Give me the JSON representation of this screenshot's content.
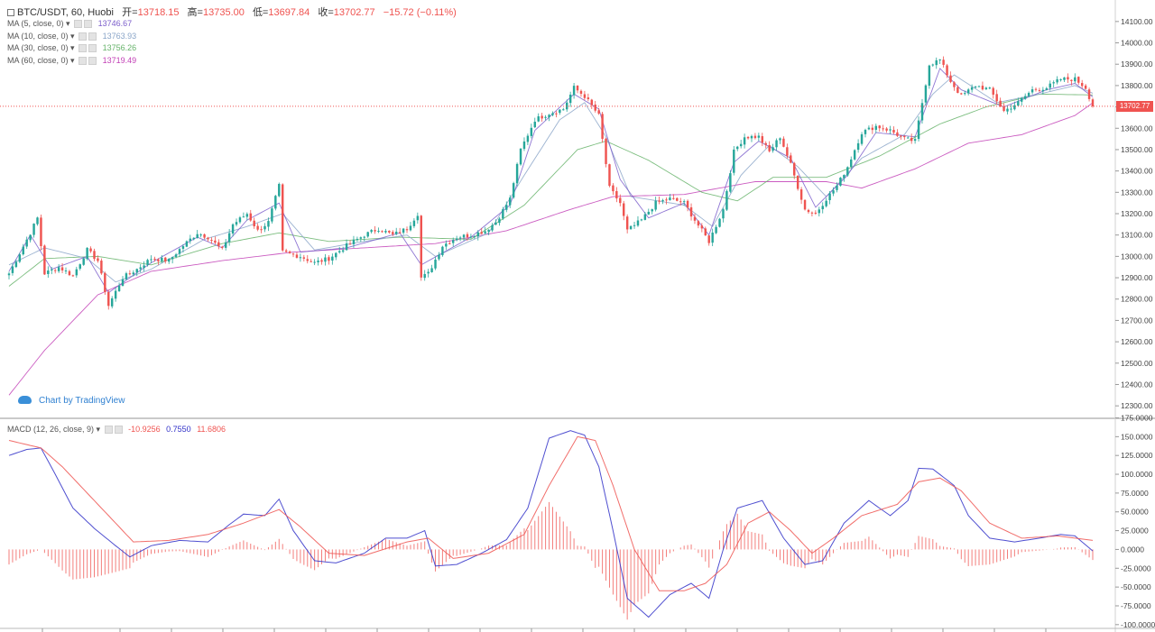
{
  "header": {
    "symbol": "BTC/USDT, 60, Huobi",
    "open_label": "开=",
    "open": "13718.15",
    "high_label": "高=",
    "high": "13735.00",
    "low_label": "低=",
    "low": "13697.84",
    "close_label": "收=",
    "close": "13702.77",
    "change": "−15.72 (−0.11%)"
  },
  "ma_legend": [
    {
      "label": "MA (5, close, 0)",
      "value": "13746.67",
      "color": "#7b5ecb"
    },
    {
      "label": "MA (10, close, 0)",
      "value": "13763.93",
      "color": "#8aa5c8"
    },
    {
      "label": "MA (30, close, 0)",
      "value": "13756.26",
      "color": "#66b36a"
    },
    {
      "label": "MA (60, close, 0)",
      "value": "13719.49",
      "color": "#c23fb6"
    }
  ],
  "macd_legend": {
    "label": "MACD (12, 26, close, 9)",
    "hist": "-10.9256",
    "macd": "0.7550",
    "signal": "11.6806",
    "hist_color": "#ef5350",
    "macd_color": "#3030c8",
    "signal_color": "#ef5350"
  },
  "branding": "Chart by TradingView",
  "last_price_label": "13702.77",
  "chart_data": [
    {
      "type": "candlestick",
      "title": "BTC/USDT, 60, Huobi",
      "ylim": [
        12250,
        14150
      ],
      "y_ticks": [
        12300,
        12400,
        12500,
        12600,
        12700,
        12800,
        12900,
        13000,
        13100,
        13200,
        13300,
        13400,
        13500,
        13600,
        13700,
        13800,
        13900,
        14000,
        14100
      ],
      "y_tick_labels": [
        "12300.00",
        "12400.00",
        "12500.00",
        "12600.00",
        "12700.00",
        "12800.00",
        "12900.00",
        "13000.00",
        "13100.00",
        "13200.00",
        "13300.00",
        "13400.00",
        "13500.00",
        "13600.00",
        "13700.00",
        "13800.00",
        "13900.00",
        "14000.00",
        "14100.00"
      ],
      "last_price": 13702.77,
      "up_color": "#26a69a",
      "down_color": "#ef5350",
      "close_anchors": [
        [
          0,
          12920
        ],
        [
          6,
          13110
        ],
        [
          8,
          13180
        ],
        [
          10,
          12920
        ],
        [
          14,
          12950
        ],
        [
          18,
          12910
        ],
        [
          22,
          13030
        ],
        [
          25,
          12980
        ],
        [
          28,
          12770
        ],
        [
          32,
          12900
        ],
        [
          36,
          12940
        ],
        [
          40,
          12990
        ],
        [
          45,
          12980
        ],
        [
          49,
          13050
        ],
        [
          53,
          13110
        ],
        [
          56,
          13090
        ],
        [
          60,
          13030
        ],
        [
          63,
          13150
        ],
        [
          67,
          13200
        ],
        [
          70,
          13120
        ],
        [
          73,
          13160
        ],
        [
          76,
          13330
        ],
        [
          77,
          13020
        ],
        [
          82,
          13000
        ],
        [
          86,
          12970
        ],
        [
          90,
          12990
        ],
        [
          95,
          13050
        ],
        [
          100,
          13100
        ],
        [
          104,
          13130
        ],
        [
          108,
          13100
        ],
        [
          112,
          13130
        ],
        [
          115,
          13200
        ],
        [
          116,
          12900
        ],
        [
          118,
          12920
        ],
        [
          122,
          13050
        ],
        [
          126,
          13090
        ],
        [
          130,
          13100
        ],
        [
          134,
          13120
        ],
        [
          137,
          13160
        ],
        [
          141,
          13270
        ],
        [
          144,
          13500
        ],
        [
          148,
          13640
        ],
        [
          152,
          13670
        ],
        [
          156,
          13690
        ],
        [
          159,
          13790
        ],
        [
          162,
          13750
        ],
        [
          166,
          13660
        ],
        [
          169,
          13320
        ],
        [
          172,
          13250
        ],
        [
          174,
          13120
        ],
        [
          178,
          13170
        ],
        [
          182,
          13250
        ],
        [
          186,
          13270
        ],
        [
          190,
          13250
        ],
        [
          193,
          13170
        ],
        [
          197,
          13070
        ],
        [
          201,
          13220
        ],
        [
          204,
          13490
        ],
        [
          207,
          13560
        ],
        [
          211,
          13560
        ],
        [
          214,
          13490
        ],
        [
          217,
          13560
        ],
        [
          220,
          13430
        ],
        [
          224,
          13220
        ],
        [
          227,
          13200
        ],
        [
          230,
          13270
        ],
        [
          233,
          13330
        ],
        [
          236,
          13420
        ],
        [
          240,
          13580
        ],
        [
          244,
          13610
        ],
        [
          248,
          13590
        ],
        [
          252,
          13550
        ],
        [
          255,
          13540
        ],
        [
          259,
          13900
        ],
        [
          262,
          13920
        ],
        [
          265,
          13820
        ],
        [
          268,
          13750
        ],
        [
          272,
          13800
        ],
        [
          276,
          13780
        ],
        [
          280,
          13680
        ],
        [
          284,
          13720
        ],
        [
          288,
          13780
        ],
        [
          292,
          13790
        ],
        [
          296,
          13830
        ],
        [
          300,
          13830
        ],
        [
          303,
          13790
        ],
        [
          305,
          13703
        ]
      ],
      "ma5_anchors": [
        [
          0,
          12930
        ],
        [
          6,
          13100
        ],
        [
          12,
          12940
        ],
        [
          22,
          13000
        ],
        [
          28,
          12830
        ],
        [
          40,
          12970
        ],
        [
          53,
          13090
        ],
        [
          60,
          13040
        ],
        [
          67,
          13170
        ],
        [
          76,
          13250
        ],
        [
          82,
          13020
        ],
        [
          95,
          13040
        ],
        [
          110,
          13110
        ],
        [
          116,
          12960
        ],
        [
          130,
          13090
        ],
        [
          141,
          13240
        ],
        [
          148,
          13590
        ],
        [
          159,
          13760
        ],
        [
          166,
          13690
        ],
        [
          172,
          13360
        ],
        [
          180,
          13180
        ],
        [
          190,
          13250
        ],
        [
          197,
          13100
        ],
        [
          204,
          13440
        ],
        [
          211,
          13540
        ],
        [
          220,
          13460
        ],
        [
          227,
          13230
        ],
        [
          236,
          13380
        ],
        [
          244,
          13580
        ],
        [
          255,
          13560
        ],
        [
          262,
          13880
        ],
        [
          268,
          13780
        ],
        [
          280,
          13700
        ],
        [
          292,
          13780
        ],
        [
          300,
          13810
        ],
        [
          305,
          13747
        ]
      ],
      "ma10_anchors": [
        [
          0,
          12960
        ],
        [
          10,
          13040
        ],
        [
          22,
          12990
        ],
        [
          30,
          12880
        ],
        [
          40,
          12940
        ],
        [
          55,
          13080
        ],
        [
          67,
          13140
        ],
        [
          77,
          13200
        ],
        [
          86,
          13030
        ],
        [
          100,
          13070
        ],
        [
          112,
          13100
        ],
        [
          120,
          13000
        ],
        [
          135,
          13110
        ],
        [
          145,
          13380
        ],
        [
          155,
          13640
        ],
        [
          162,
          13720
        ],
        [
          168,
          13560
        ],
        [
          175,
          13280
        ],
        [
          190,
          13240
        ],
        [
          198,
          13140
        ],
        [
          206,
          13380
        ],
        [
          214,
          13520
        ],
        [
          222,
          13420
        ],
        [
          230,
          13280
        ],
        [
          240,
          13460
        ],
        [
          252,
          13570
        ],
        [
          260,
          13760
        ],
        [
          266,
          13850
        ],
        [
          278,
          13720
        ],
        [
          290,
          13760
        ],
        [
          300,
          13800
        ],
        [
          305,
          13764
        ]
      ],
      "ma30_anchors": [
        [
          0,
          12860
        ],
        [
          10,
          12990
        ],
        [
          25,
          13000
        ],
        [
          40,
          12960
        ],
        [
          60,
          13060
        ],
        [
          76,
          13110
        ],
        [
          90,
          13070
        ],
        [
          110,
          13090
        ],
        [
          130,
          13080
        ],
        [
          145,
          13240
        ],
        [
          160,
          13500
        ],
        [
          168,
          13540
        ],
        [
          180,
          13450
        ],
        [
          195,
          13300
        ],
        [
          205,
          13260
        ],
        [
          215,
          13370
        ],
        [
          230,
          13370
        ],
        [
          245,
          13470
        ],
        [
          262,
          13620
        ],
        [
          275,
          13700
        ],
        [
          290,
          13760
        ],
        [
          305,
          13756
        ]
      ],
      "ma60_anchors": [
        [
          0,
          12350
        ],
        [
          10,
          12560
        ],
        [
          25,
          12820
        ],
        [
          40,
          12930
        ],
        [
          60,
          12980
        ],
        [
          80,
          13020
        ],
        [
          100,
          13040
        ],
        [
          120,
          13060
        ],
        [
          140,
          13120
        ],
        [
          158,
          13220
        ],
        [
          170,
          13280
        ],
        [
          190,
          13290
        ],
        [
          210,
          13350
        ],
        [
          230,
          13350
        ],
        [
          240,
          13320
        ],
        [
          255,
          13410
        ],
        [
          270,
          13530
        ],
        [
          285,
          13570
        ],
        [
          300,
          13660
        ],
        [
          305,
          13719
        ]
      ]
    },
    {
      "type": "macd",
      "title": "MACD (12, 26, close, 9)",
      "ylim": [
        -105,
        172
      ],
      "y_ticks": [
        -100,
        -75,
        -50,
        -25,
        0,
        25,
        50,
        75,
        100,
        125,
        150,
        175
      ],
      "y_tick_labels": [
        "-100.0000",
        "-75.0000",
        "-50.0000",
        "-25.0000",
        "0.0000",
        "25.0000",
        "50.0000",
        "75.0000",
        "100.0000",
        "125.0000",
        "150.0000",
        "175.0000"
      ],
      "macd_anchors": [
        [
          0,
          125
        ],
        [
          5,
          133
        ],
        [
          9,
          135
        ],
        [
          13,
          100
        ],
        [
          18,
          55
        ],
        [
          24,
          28
        ],
        [
          30,
          5
        ],
        [
          34,
          -10
        ],
        [
          40,
          5
        ],
        [
          48,
          12
        ],
        [
          56,
          10
        ],
        [
          62,
          33
        ],
        [
          66,
          47
        ],
        [
          72,
          45
        ],
        [
          76,
          67
        ],
        [
          80,
          25
        ],
        [
          86,
          -15
        ],
        [
          92,
          -18
        ],
        [
          100,
          -5
        ],
        [
          106,
          15
        ],
        [
          112,
          15
        ],
        [
          117,
          25
        ],
        [
          120,
          -22
        ],
        [
          126,
          -20
        ],
        [
          133,
          -5
        ],
        [
          140,
          13
        ],
        [
          146,
          55
        ],
        [
          152,
          148
        ],
        [
          158,
          158
        ],
        [
          162,
          152
        ],
        [
          166,
          110
        ],
        [
          170,
          25
        ],
        [
          174,
          -65
        ],
        [
          180,
          -90
        ],
        [
          186,
          -60
        ],
        [
          192,
          -45
        ],
        [
          197,
          -65
        ],
        [
          201,
          0
        ],
        [
          205,
          55
        ],
        [
          212,
          65
        ],
        [
          218,
          15
        ],
        [
          224,
          -20
        ],
        [
          229,
          -15
        ],
        [
          235,
          35
        ],
        [
          242,
          65
        ],
        [
          248,
          45
        ],
        [
          253,
          65
        ],
        [
          256,
          108
        ],
        [
          260,
          107
        ],
        [
          266,
          85
        ],
        [
          270,
          45
        ],
        [
          276,
          15
        ],
        [
          283,
          10
        ],
        [
          290,
          15
        ],
        [
          296,
          20
        ],
        [
          300,
          18
        ],
        [
          305,
          -2
        ]
      ],
      "signal_anchors": [
        [
          0,
          145
        ],
        [
          9,
          135
        ],
        [
          15,
          110
        ],
        [
          25,
          60
        ],
        [
          35,
          10
        ],
        [
          45,
          12
        ],
        [
          56,
          20
        ],
        [
          66,
          35
        ],
        [
          76,
          53
        ],
        [
          82,
          30
        ],
        [
          90,
          -5
        ],
        [
          100,
          -8
        ],
        [
          112,
          10
        ],
        [
          118,
          15
        ],
        [
          125,
          -12
        ],
        [
          135,
          -5
        ],
        [
          145,
          20
        ],
        [
          152,
          85
        ],
        [
          160,
          150
        ],
        [
          165,
          145
        ],
        [
          170,
          85
        ],
        [
          176,
          0
        ],
        [
          183,
          -55
        ],
        [
          190,
          -55
        ],
        [
          196,
          -45
        ],
        [
          202,
          -20
        ],
        [
          208,
          35
        ],
        [
          214,
          50
        ],
        [
          220,
          25
        ],
        [
          226,
          -5
        ],
        [
          232,
          15
        ],
        [
          240,
          45
        ],
        [
          250,
          60
        ],
        [
          256,
          90
        ],
        [
          262,
          95
        ],
        [
          268,
          78
        ],
        [
          276,
          35
        ],
        [
          285,
          15
        ],
        [
          295,
          18
        ],
        [
          305,
          12
        ]
      ]
    }
  ]
}
